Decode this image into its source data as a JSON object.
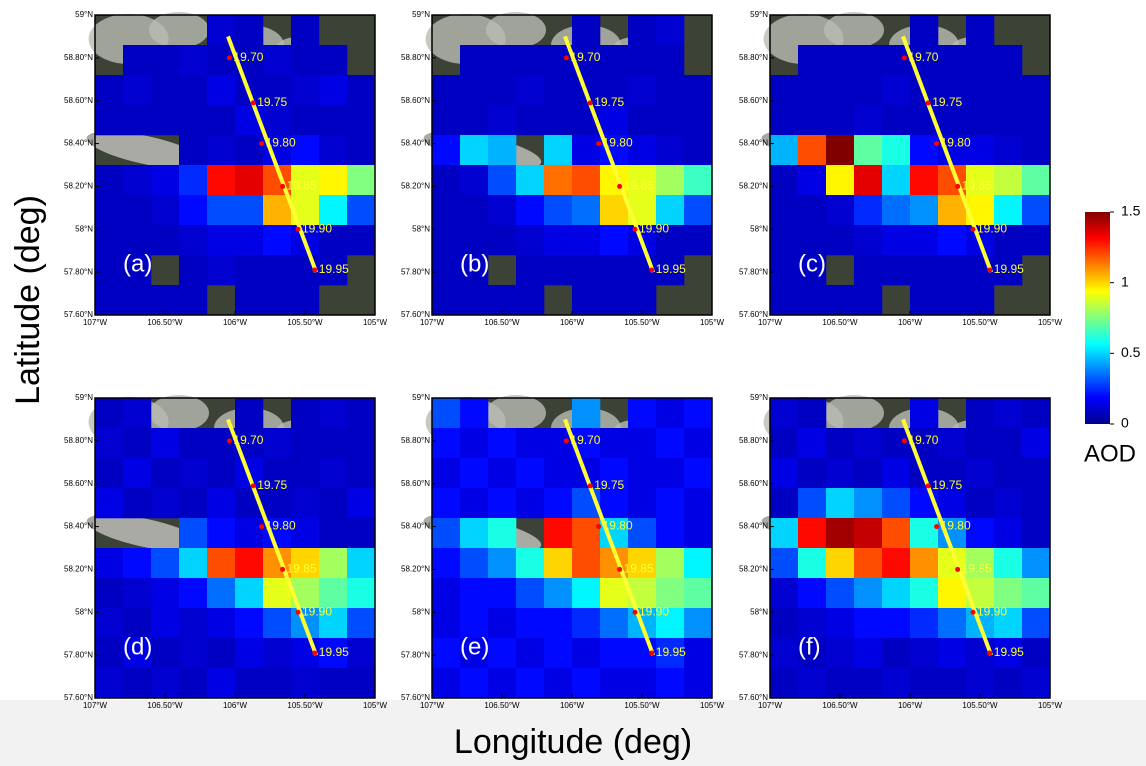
{
  "y_axis_title": "Latitude (deg)",
  "x_axis_title": "Longitude (deg)",
  "colorbar": {
    "label": "AOD",
    "lim": [
      0,
      1.5
    ],
    "ticks": [
      0,
      0.5,
      1,
      1.5
    ]
  },
  "map": {
    "lonlim": [
      -107,
      -105
    ],
    "latlim": [
      57.6,
      59
    ],
    "lonticks": [
      {
        "value": -107,
        "label": "107°W"
      },
      {
        "value": -106.5,
        "label": "106.50°W"
      },
      {
        "value": -106,
        "label": "106°W"
      },
      {
        "value": -105.5,
        "label": "105.50°W"
      },
      {
        "value": -105,
        "label": "105°W"
      }
    ],
    "latticks": [
      {
        "value": 57.6,
        "label": "57.60°N"
      },
      {
        "value": 57.8,
        "label": "57.80°N"
      },
      {
        "value": 58,
        "label": "58°N"
      },
      {
        "value": 58.2,
        "label": "58.20°N"
      },
      {
        "value": 58.4,
        "label": "58.40°N"
      },
      {
        "value": 58.6,
        "label": "58.60°N"
      },
      {
        "value": 58.8,
        "label": "58.80°N"
      },
      {
        "value": 59,
        "label": "59°N"
      }
    ],
    "track_start": [
      -106.05,
      58.9
    ],
    "track_end": [
      -105.42,
      57.8
    ],
    "track_points": [
      {
        "label": "19.70",
        "lon": -106.04,
        "lat": 58.8
      },
      {
        "label": "19.75",
        "lon": -105.87,
        "lat": 58.59
      },
      {
        "label": "19.80",
        "lon": -105.81,
        "lat": 58.4
      },
      {
        "label": "19.85",
        "lon": -105.66,
        "lat": 58.2
      },
      {
        "label": "19.90",
        "lon": -105.55,
        "lat": 58.0
      },
      {
        "label": "19.95",
        "lon": -105.43,
        "lat": 57.81
      }
    ]
  },
  "panels": [
    {
      "label": "(a)",
      "grid": [
        [
          null,
          null,
          null,
          null,
          0.12,
          0.1,
          null,
          0.1,
          null,
          null
        ],
        [
          null,
          0.1,
          0.1,
          0.12,
          0.1,
          0.1,
          0.12,
          0.1,
          0.1,
          null
        ],
        [
          0.1,
          0.12,
          0.1,
          0.1,
          0.15,
          0.1,
          0.1,
          0.12,
          0.15,
          0.1
        ],
        [
          0.1,
          0.1,
          0.1,
          0.1,
          0.1,
          0.15,
          0.12,
          0.1,
          0.1,
          0.1
        ],
        [
          null,
          null,
          null,
          0.1,
          0.12,
          0.1,
          0.15,
          0.2,
          0.12,
          0.1
        ],
        [
          0.1,
          0.12,
          0.15,
          0.25,
          1.3,
          1.35,
          1.2,
          0.9,
          0.95,
          0.75
        ],
        [
          0.1,
          0.1,
          0.12,
          0.2,
          0.3,
          0.3,
          1.05,
          0.9,
          0.55,
          0.3
        ],
        [
          0.1,
          0.1,
          0.1,
          0.12,
          0.15,
          0.15,
          0.2,
          0.15,
          0.1,
          0.1
        ],
        [
          0.1,
          0.1,
          null,
          0.1,
          0.12,
          0.1,
          0.1,
          0.1,
          0.1,
          null
        ],
        [
          0.1,
          0.1,
          0.1,
          0.1,
          null,
          0.1,
          0.1,
          0.1,
          null,
          null
        ]
      ]
    },
    {
      "label": "(b)",
      "grid": [
        [
          null,
          null,
          null,
          null,
          null,
          0.1,
          null,
          0.1,
          0.12,
          null
        ],
        [
          null,
          0.1,
          0.1,
          0.1,
          0.1,
          0.1,
          0.1,
          0.1,
          0.1,
          null
        ],
        [
          0.1,
          0.1,
          0.1,
          0.12,
          0.1,
          0.1,
          0.1,
          0.12,
          0.1,
          0.1
        ],
        [
          0.1,
          0.1,
          0.12,
          0.1,
          0.1,
          0.1,
          0.15,
          0.1,
          0.1,
          0.1
        ],
        [
          0.2,
          0.5,
          0.45,
          null,
          0.5,
          0.15,
          0.2,
          0.15,
          0.12,
          0.1
        ],
        [
          0.1,
          0.12,
          0.3,
          0.5,
          1.15,
          1.2,
          0.95,
          0.9,
          0.8,
          0.65
        ],
        [
          0.1,
          0.1,
          0.12,
          0.2,
          0.3,
          0.35,
          1.0,
          0.9,
          0.5,
          0.3
        ],
        [
          0.1,
          0.1,
          0.1,
          0.12,
          0.15,
          0.15,
          0.2,
          0.15,
          0.1,
          0.1
        ],
        [
          0.1,
          0.1,
          null,
          0.1,
          0.1,
          0.1,
          0.1,
          0.1,
          0.1,
          null
        ],
        [
          0.1,
          0.1,
          0.1,
          0.1,
          null,
          0.1,
          0.1,
          0.1,
          null,
          null
        ]
      ]
    },
    {
      "label": "(c)",
      "grid": [
        [
          null,
          null,
          null,
          null,
          null,
          0.1,
          null,
          0.1,
          null,
          null
        ],
        [
          null,
          0.1,
          0.1,
          0.1,
          0.1,
          0.1,
          0.1,
          0.1,
          0.1,
          null
        ],
        [
          0.1,
          0.1,
          0.1,
          0.1,
          0.12,
          0.1,
          0.1,
          0.1,
          0.1,
          0.1
        ],
        [
          0.1,
          0.1,
          0.1,
          0.12,
          0.1,
          0.1,
          0.1,
          0.1,
          0.1,
          0.1
        ],
        [
          0.45,
          1.2,
          1.5,
          0.7,
          0.6,
          0.2,
          0.15,
          0.15,
          0.12,
          0.1
        ],
        [
          0.1,
          0.15,
          0.95,
          1.35,
          0.5,
          1.3,
          1.2,
          0.9,
          0.85,
          0.7
        ],
        [
          0.1,
          0.1,
          0.12,
          0.25,
          0.35,
          0.4,
          1.05,
          0.95,
          0.55,
          0.3
        ],
        [
          0.1,
          0.1,
          0.1,
          0.12,
          0.15,
          0.15,
          0.2,
          0.15,
          0.1,
          0.1
        ],
        [
          0.1,
          0.1,
          null,
          0.1,
          0.1,
          0.1,
          0.1,
          0.1,
          0.1,
          null
        ],
        [
          0.1,
          0.1,
          0.1,
          0.1,
          null,
          0.1,
          0.1,
          0.1,
          null,
          null
        ]
      ]
    },
    {
      "label": "(d)",
      "grid": [
        [
          0.1,
          0.12,
          null,
          null,
          null,
          0.1,
          null,
          0.1,
          0.12,
          0.1
        ],
        [
          0.12,
          0.1,
          0.15,
          0.1,
          0.1,
          0.1,
          0.12,
          0.1,
          0.1,
          0.1
        ],
        [
          0.1,
          0.15,
          0.1,
          0.12,
          0.1,
          0.15,
          0.1,
          0.1,
          0.12,
          0.1
        ],
        [
          0.15,
          0.1,
          0.12,
          0.1,
          0.15,
          0.1,
          0.1,
          0.12,
          0.1,
          0.15
        ],
        [
          null,
          null,
          null,
          0.3,
          0.2,
          0.15,
          0.2,
          0.15,
          0.1,
          0.1
        ],
        [
          0.15,
          0.2,
          0.3,
          0.5,
          1.2,
          1.3,
          1.1,
          1.0,
          0.8,
          0.5
        ],
        [
          0.1,
          0.12,
          0.15,
          0.2,
          0.35,
          0.5,
          0.9,
          0.8,
          0.7,
          0.6
        ],
        [
          0.12,
          0.1,
          0.15,
          0.12,
          0.15,
          0.2,
          0.3,
          0.4,
          0.5,
          0.3
        ],
        [
          0.1,
          0.15,
          0.1,
          0.12,
          0.1,
          0.15,
          0.12,
          0.15,
          0.2,
          0.12
        ],
        [
          0.12,
          0.1,
          0.12,
          0.1,
          0.15,
          0.1,
          0.1,
          0.12,
          0.1,
          0.1
        ]
      ]
    },
    {
      "label": "(e)",
      "grid": [
        [
          0.3,
          0.2,
          null,
          null,
          null,
          0.4,
          null,
          0.2,
          0.15,
          0.2
        ],
        [
          0.2,
          0.15,
          0.2,
          0.15,
          0.15,
          0.2,
          0.15,
          0.15,
          0.2,
          0.15
        ],
        [
          0.15,
          0.2,
          0.15,
          0.2,
          0.15,
          0.15,
          0.2,
          0.15,
          0.15,
          0.2
        ],
        [
          0.2,
          0.15,
          0.2,
          0.15,
          0.2,
          0.3,
          0.2,
          0.15,
          0.2,
          0.15
        ],
        [
          0.3,
          0.5,
          0.6,
          null,
          1.3,
          1.2,
          0.5,
          0.3,
          0.2,
          0.15
        ],
        [
          0.2,
          0.3,
          0.4,
          0.6,
          1.0,
          1.2,
          1.1,
          1.0,
          0.8,
          0.55
        ],
        [
          0.15,
          0.2,
          0.2,
          0.3,
          0.4,
          0.55,
          0.9,
          0.85,
          0.75,
          0.7
        ],
        [
          0.15,
          0.2,
          0.15,
          0.2,
          0.2,
          0.25,
          0.35,
          0.45,
          0.55,
          0.4
        ],
        [
          0.2,
          0.15,
          0.2,
          0.15,
          0.2,
          0.15,
          0.2,
          0.2,
          0.25,
          0.15
        ],
        [
          0.15,
          0.2,
          0.15,
          0.2,
          0.15,
          0.2,
          0.15,
          0.15,
          0.2,
          0.15
        ]
      ]
    },
    {
      "label": "(f)",
      "grid": [
        [
          0.12,
          0.1,
          null,
          null,
          null,
          0.15,
          null,
          0.1,
          0.12,
          0.1
        ],
        [
          0.1,
          0.15,
          0.1,
          0.12,
          0.1,
          0.1,
          0.12,
          0.1,
          0.1,
          0.15
        ],
        [
          0.15,
          0.1,
          0.12,
          0.1,
          0.15,
          0.1,
          0.1,
          0.12,
          0.1,
          0.1
        ],
        [
          0.1,
          0.3,
          0.5,
          0.4,
          0.3,
          0.2,
          0.15,
          0.1,
          0.12,
          0.1
        ],
        [
          0.5,
          1.3,
          1.45,
          1.4,
          1.2,
          0.6,
          0.4,
          0.2,
          0.15,
          0.1
        ],
        [
          0.3,
          0.6,
          1.0,
          1.2,
          1.3,
          1.1,
          0.9,
          0.8,
          0.6,
          0.4
        ],
        [
          0.12,
          0.2,
          0.3,
          0.4,
          0.5,
          0.6,
          0.95,
          0.85,
          0.75,
          0.7
        ],
        [
          0.1,
          0.12,
          0.15,
          0.2,
          0.2,
          0.25,
          0.35,
          0.45,
          0.5,
          0.3
        ],
        [
          0.12,
          0.1,
          0.12,
          0.15,
          0.1,
          0.12,
          0.15,
          0.12,
          0.15,
          0.1
        ],
        [
          0.1,
          0.12,
          0.1,
          0.1,
          0.12,
          0.1,
          0.1,
          0.12,
          0.1,
          0.12
        ]
      ]
    }
  ]
}
